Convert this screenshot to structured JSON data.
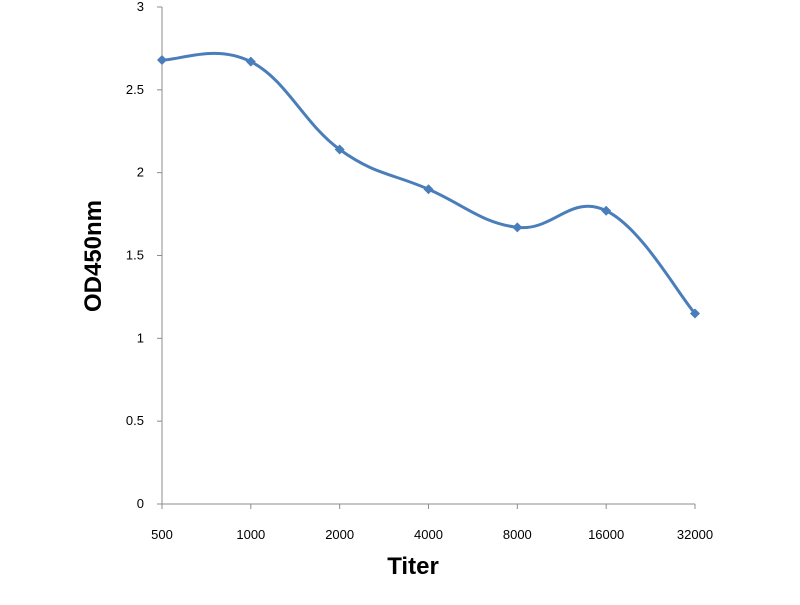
{
  "chart_data": {
    "type": "line",
    "title": "",
    "xlabel": "Titer",
    "ylabel": "OD450nm",
    "categories": [
      "500",
      "1000",
      "2000",
      "4000",
      "8000",
      "16000",
      "32000"
    ],
    "series": [
      {
        "values": [
          2.68,
          2.67,
          2.14,
          1.9,
          1.67,
          1.77,
          1.15
        ],
        "color": "#4a7ebb",
        "marker": "diamond",
        "smooth": true
      }
    ],
    "ylim": [
      0,
      3
    ],
    "yticks": [
      "0",
      "0.5",
      "1",
      "1.5",
      "2",
      "2.5",
      "3"
    ],
    "grid": false,
    "legend": "none"
  }
}
